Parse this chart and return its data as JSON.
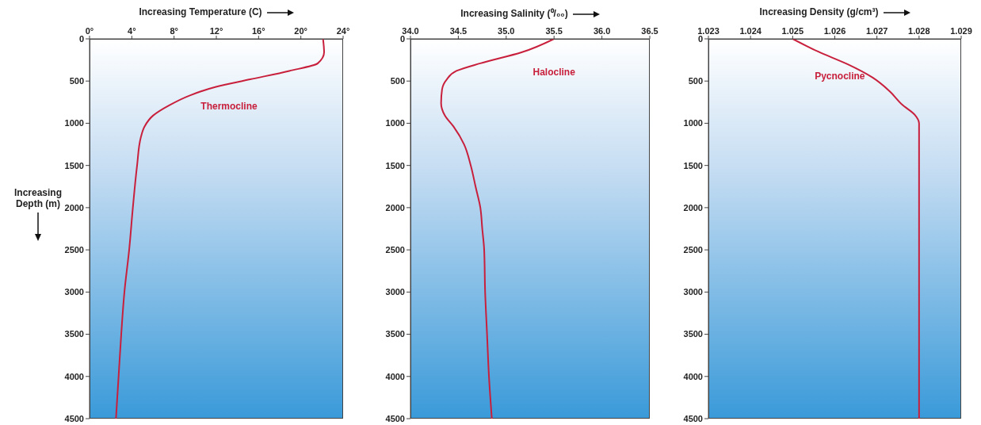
{
  "chart_data": [
    {
      "type": "line",
      "xlabel": "Increasing Temperature (C)",
      "ylabel": "Increasing Depth (m)",
      "color": "#c8203c",
      "marker": "none",
      "x": [
        22.1,
        22.2,
        21.6,
        18.9,
        15.2,
        11.9,
        9.5,
        7.5,
        6.0,
        5.2,
        4.85,
        4.5,
        4.1,
        3.75,
        3.3,
        3.0,
        2.75,
        2.5
      ],
      "values": [
        0,
        160,
        290,
        380,
        480,
        570,
        670,
        790,
        910,
        1040,
        1170,
        1500,
        2000,
        2500,
        3000,
        3500,
        4000,
        4500
      ],
      "xlim": [
        0,
        24
      ],
      "xticks": [
        {
          "value": 0,
          "label": "0°"
        },
        {
          "value": 4,
          "label": "4°"
        },
        {
          "value": 8,
          "label": "8°"
        },
        {
          "value": 12,
          "label": "12°"
        },
        {
          "value": 16,
          "label": "16°"
        },
        {
          "value": 20,
          "label": "20°"
        },
        {
          "value": 24,
          "label": "24°"
        }
      ],
      "ylim": [
        4500,
        0
      ],
      "yticks": [
        0,
        500,
        1000,
        1500,
        2000,
        2500,
        3000,
        3500,
        4000,
        4500
      ],
      "annotations": [
        "Thermocline"
      ]
    },
    {
      "type": "line",
      "xlabel": "Increasing Salinity (⁰/₀₀)",
      "color": "#c8203c",
      "marker": "none",
      "x": [
        35.5,
        35.16,
        34.73,
        34.48,
        34.38,
        34.33,
        34.32,
        34.36,
        34.45,
        34.56,
        34.63,
        34.68,
        34.73,
        34.75,
        34.77,
        34.78,
        34.8,
        34.82,
        34.85
      ],
      "values": [
        0,
        160,
        290,
        380,
        480,
        600,
        760,
        910,
        1040,
        1250,
        1500,
        1750,
        2000,
        2250,
        2500,
        3000,
        3500,
        4000,
        4500
      ],
      "xlim": [
        34.0,
        36.5
      ],
      "xticks": [
        {
          "value": 34.0,
          "label": "34.0"
        },
        34.5,
        {
          "value": 35.0,
          "label": "35.0"
        },
        35.5,
        {
          "value": 36.0,
          "label": "36.0"
        },
        36.5
      ],
      "ylim": [
        4500,
        0
      ],
      "yticks": [
        0,
        500,
        1000,
        1500,
        2000,
        2500,
        3000,
        3500,
        4000,
        4500
      ],
      "annotations": [
        "Halocline"
      ]
    },
    {
      "type": "line",
      "xlabel": "Increasing Density (g/cm³)",
      "color": "#c8203c",
      "marker": "none",
      "x": [
        1.025,
        1.0256,
        1.0263,
        1.0269,
        1.0273,
        1.0276,
        1.0279,
        1.028,
        1.028,
        1.028
      ],
      "values": [
        0,
        150,
        300,
        460,
        620,
        780,
        900,
        1000,
        2500,
        4500
      ],
      "xlim": [
        1.023,
        1.029
      ],
      "xticks": [
        1.023,
        1.024,
        1.025,
        1.026,
        1.027,
        1.028,
        1.029
      ],
      "ylim": [
        4500,
        0
      ],
      "yticks": [
        0,
        500,
        1000,
        1500,
        2000,
        2500,
        3000,
        3500,
        4000,
        4500
      ],
      "annotations": [
        "Pycnocline"
      ]
    }
  ]
}
